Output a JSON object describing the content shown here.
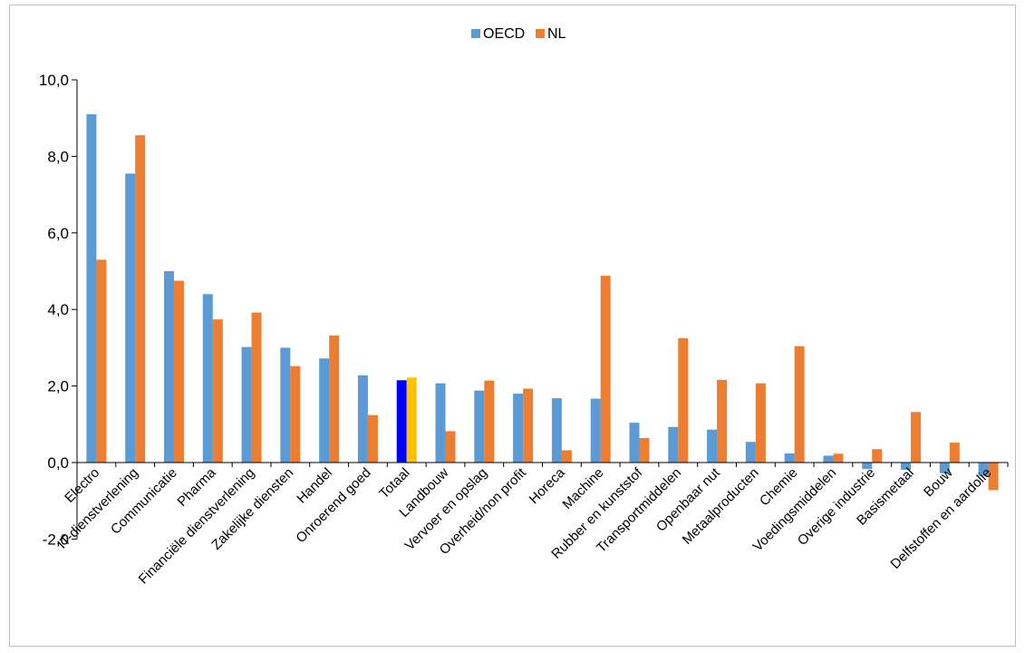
{
  "chart_data": {
    "type": "bar",
    "title": "",
    "xlabel": "",
    "ylabel": "",
    "ylim": [
      -2,
      10
    ],
    "yticks": [
      "-2,0",
      "0,0",
      "2,0",
      "4,0",
      "6,0",
      "8,0",
      "10,0"
    ],
    "ytick_values": [
      -2,
      0,
      2,
      4,
      6,
      8,
      10
    ],
    "grid": false,
    "legend_position": "top-center",
    "categories": [
      "Electro",
      "IT-dienstverlening",
      "Communicatie",
      "Pharma",
      "Financiële dienstverlening",
      "Zakelijke diensten",
      "Handel",
      "Onroerend goed",
      "Totaal",
      "Landbouw",
      "Vervoer en opslag",
      "Overheid/non profit",
      "Horeca",
      "Machine",
      "Rubber en kunststof",
      "Transportmiddelen",
      "Openbaar nut",
      "Metaalproducten",
      "Chemie",
      "Voedingsmiddelen",
      "Overige industrie",
      "Basismetaal",
      "Bouw",
      "Delfstoffen en aardolie"
    ],
    "series": [
      {
        "name": "OECD",
        "color": "#5b9bd5",
        "values": [
          9.1,
          7.55,
          5.0,
          4.4,
          3.02,
          3.0,
          2.72,
          2.28,
          2.15,
          2.07,
          1.88,
          1.8,
          1.68,
          1.67,
          1.04,
          0.93,
          0.86,
          0.54,
          0.24,
          0.18,
          -0.17,
          -0.19,
          -0.28,
          -0.35
        ]
      },
      {
        "name": "NL",
        "color": "#ed7d31",
        "values": [
          5.3,
          8.55,
          4.75,
          3.74,
          3.92,
          2.52,
          3.32,
          1.24,
          2.22,
          0.82,
          2.14,
          1.93,
          0.32,
          4.88,
          0.64,
          3.25,
          2.16,
          2.07,
          3.04,
          0.23,
          0.35,
          1.32,
          0.52,
          -0.72
        ]
      }
    ],
    "highlight": {
      "category": "Totaal",
      "colors": {
        "OECD": "#0000ff",
        "NL": "#ffc000"
      }
    }
  }
}
